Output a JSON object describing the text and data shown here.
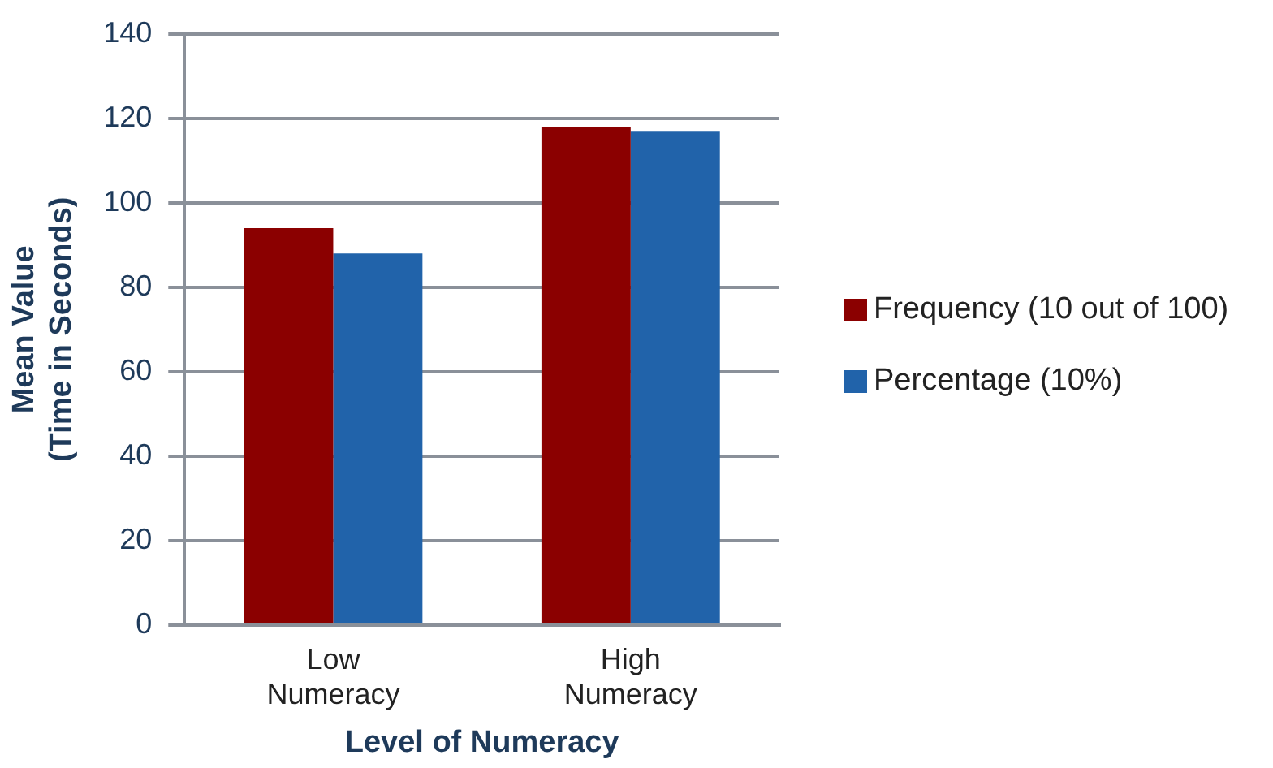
{
  "chart_data": {
    "type": "bar",
    "xlabel": "Level of Numeracy",
    "ylabel": "Mean Value\n(Time in Seconds)",
    "categories": [
      "Low Numeracy",
      "High Numeracy"
    ],
    "series": [
      {
        "name": "Frequency (10 out of 100)",
        "color": "#8b0000",
        "values": [
          94,
          118
        ]
      },
      {
        "name": "Percentage (10%)",
        "color": "#2163aa",
        "values": [
          88,
          117
        ]
      }
    ],
    "ylim": [
      0,
      140
    ],
    "yticks": [
      0,
      20,
      40,
      60,
      80,
      100,
      120,
      140
    ],
    "grid": "y",
    "legend": "right"
  }
}
